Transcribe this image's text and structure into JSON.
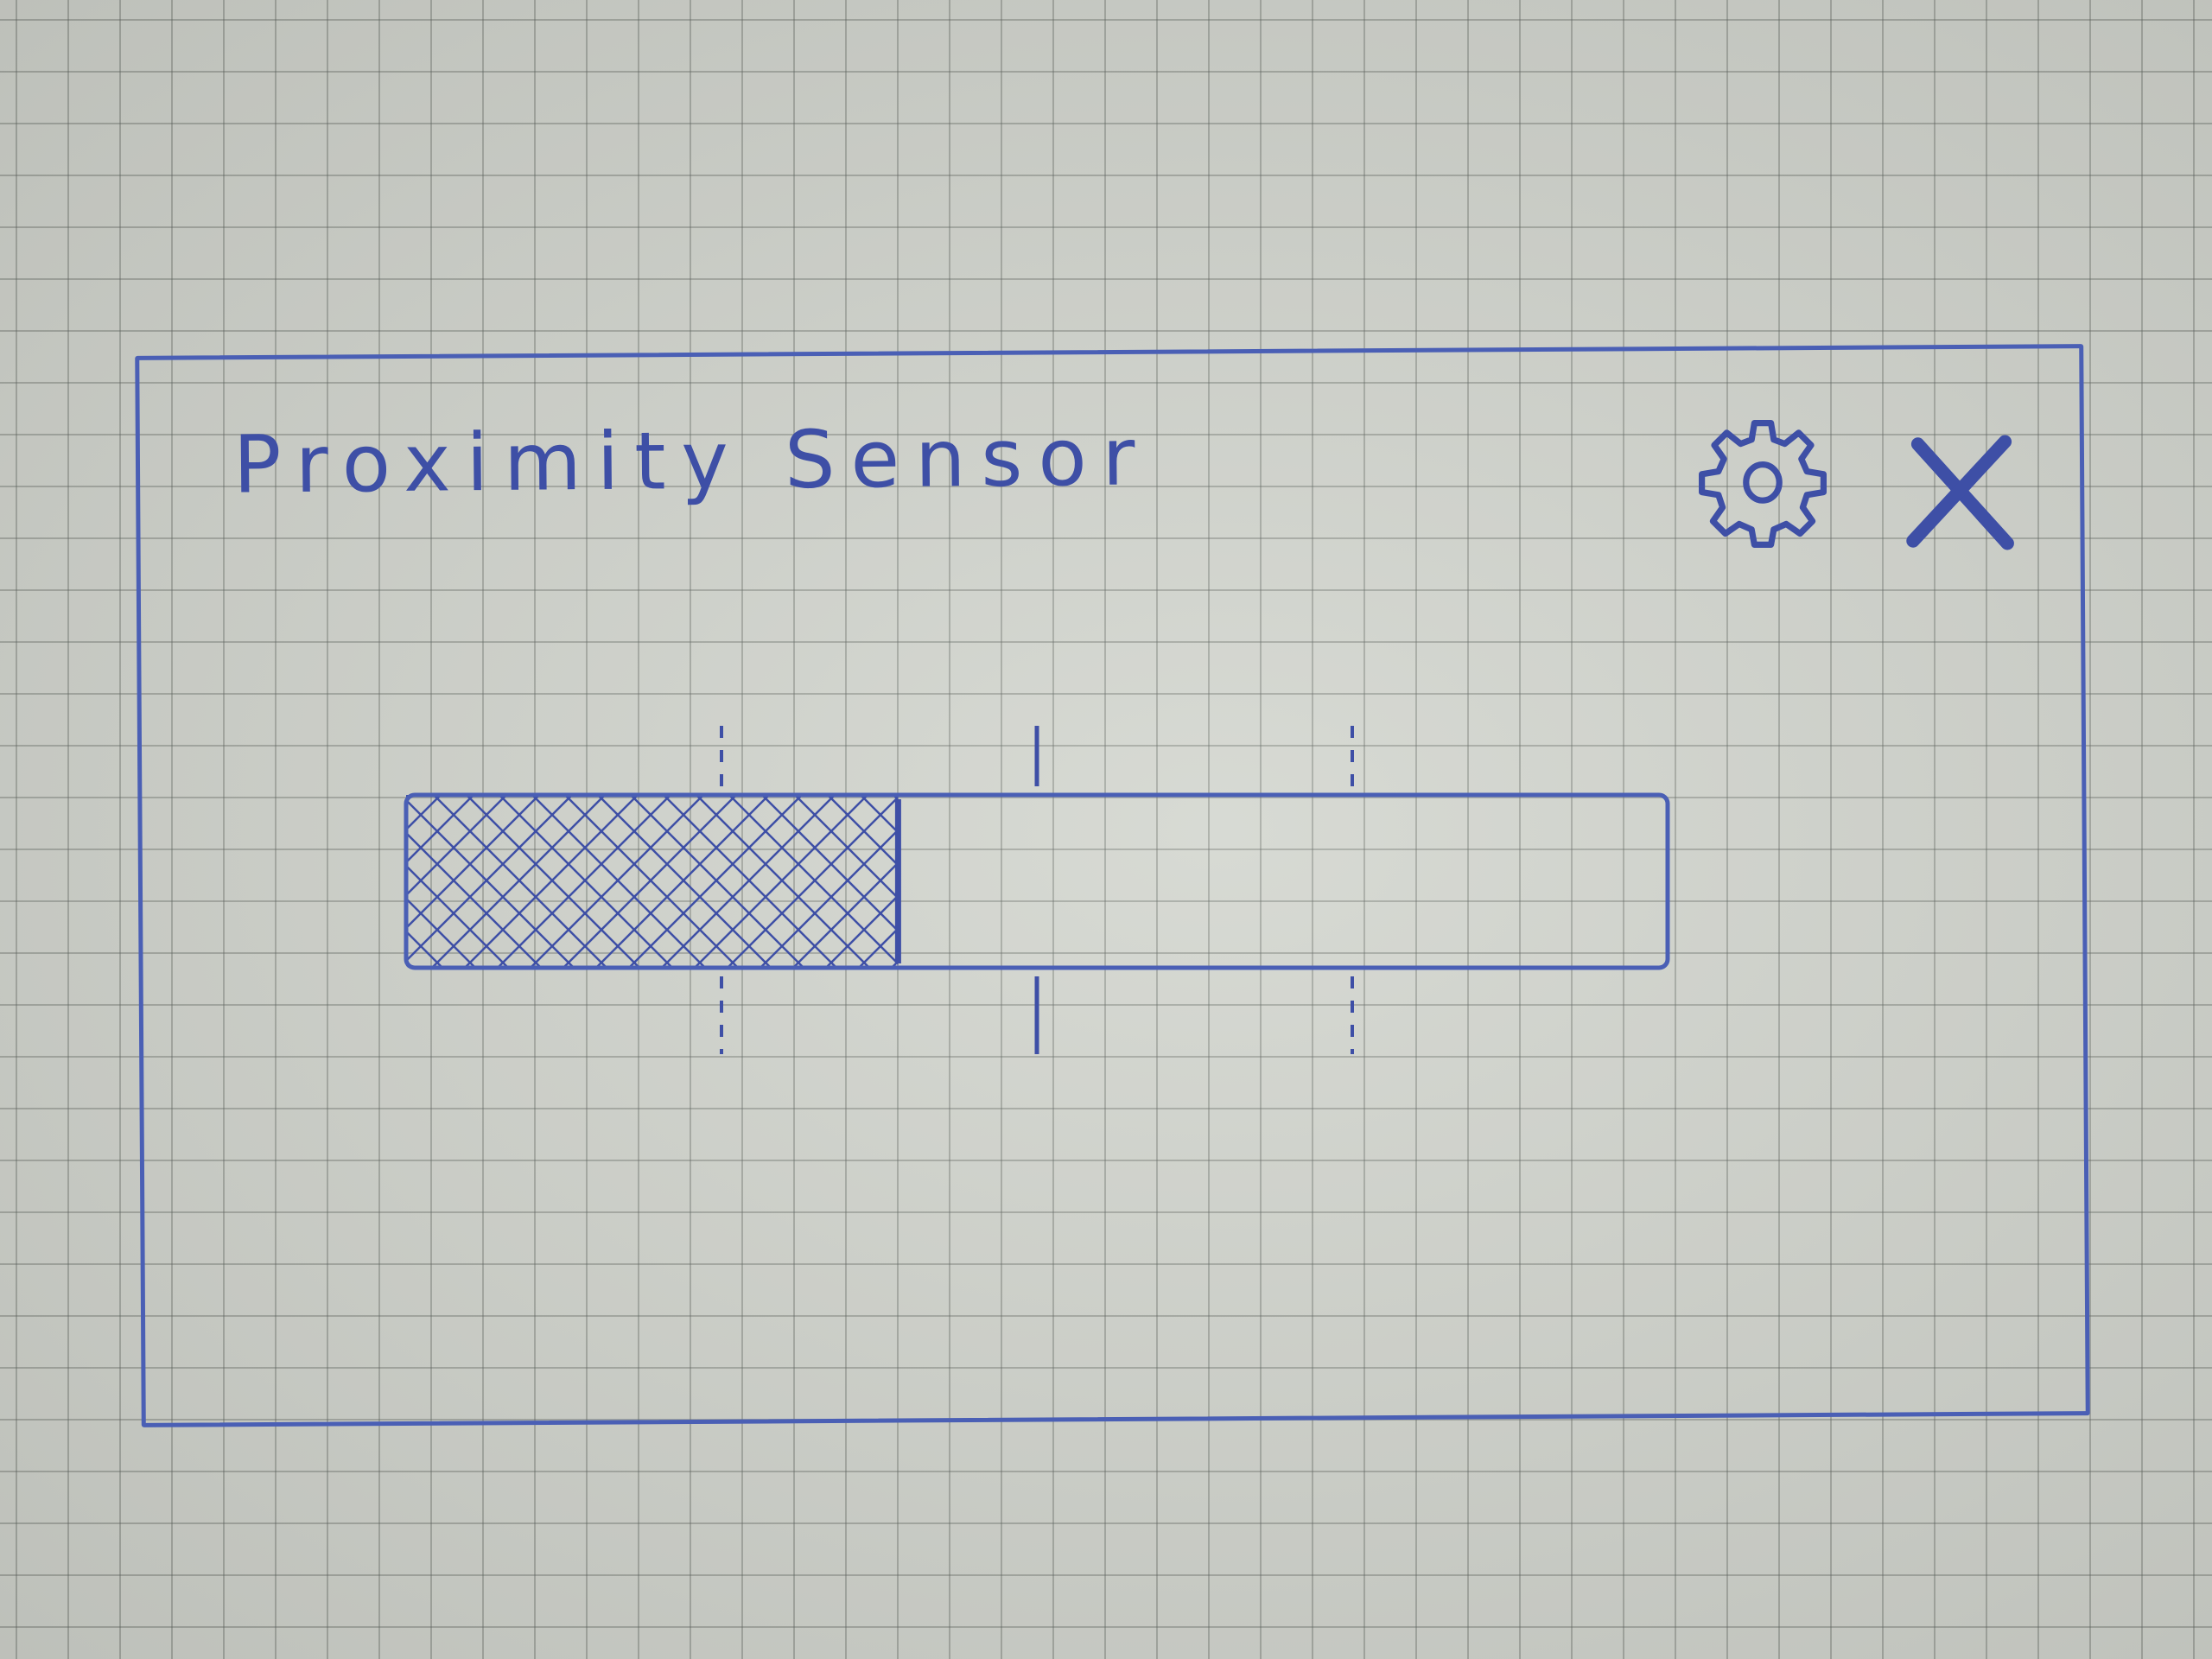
{
  "window": {
    "title": "Proximity Sensor"
  },
  "toolbar": {
    "settings_icon": "gear-icon",
    "close_icon": "close-icon"
  },
  "slider": {
    "value": 0.39,
    "tick_positions": [
      0.25,
      0.5,
      0.75
    ]
  },
  "colors": {
    "ink": "#4a5fb5",
    "paper": "#d3d6cf"
  }
}
